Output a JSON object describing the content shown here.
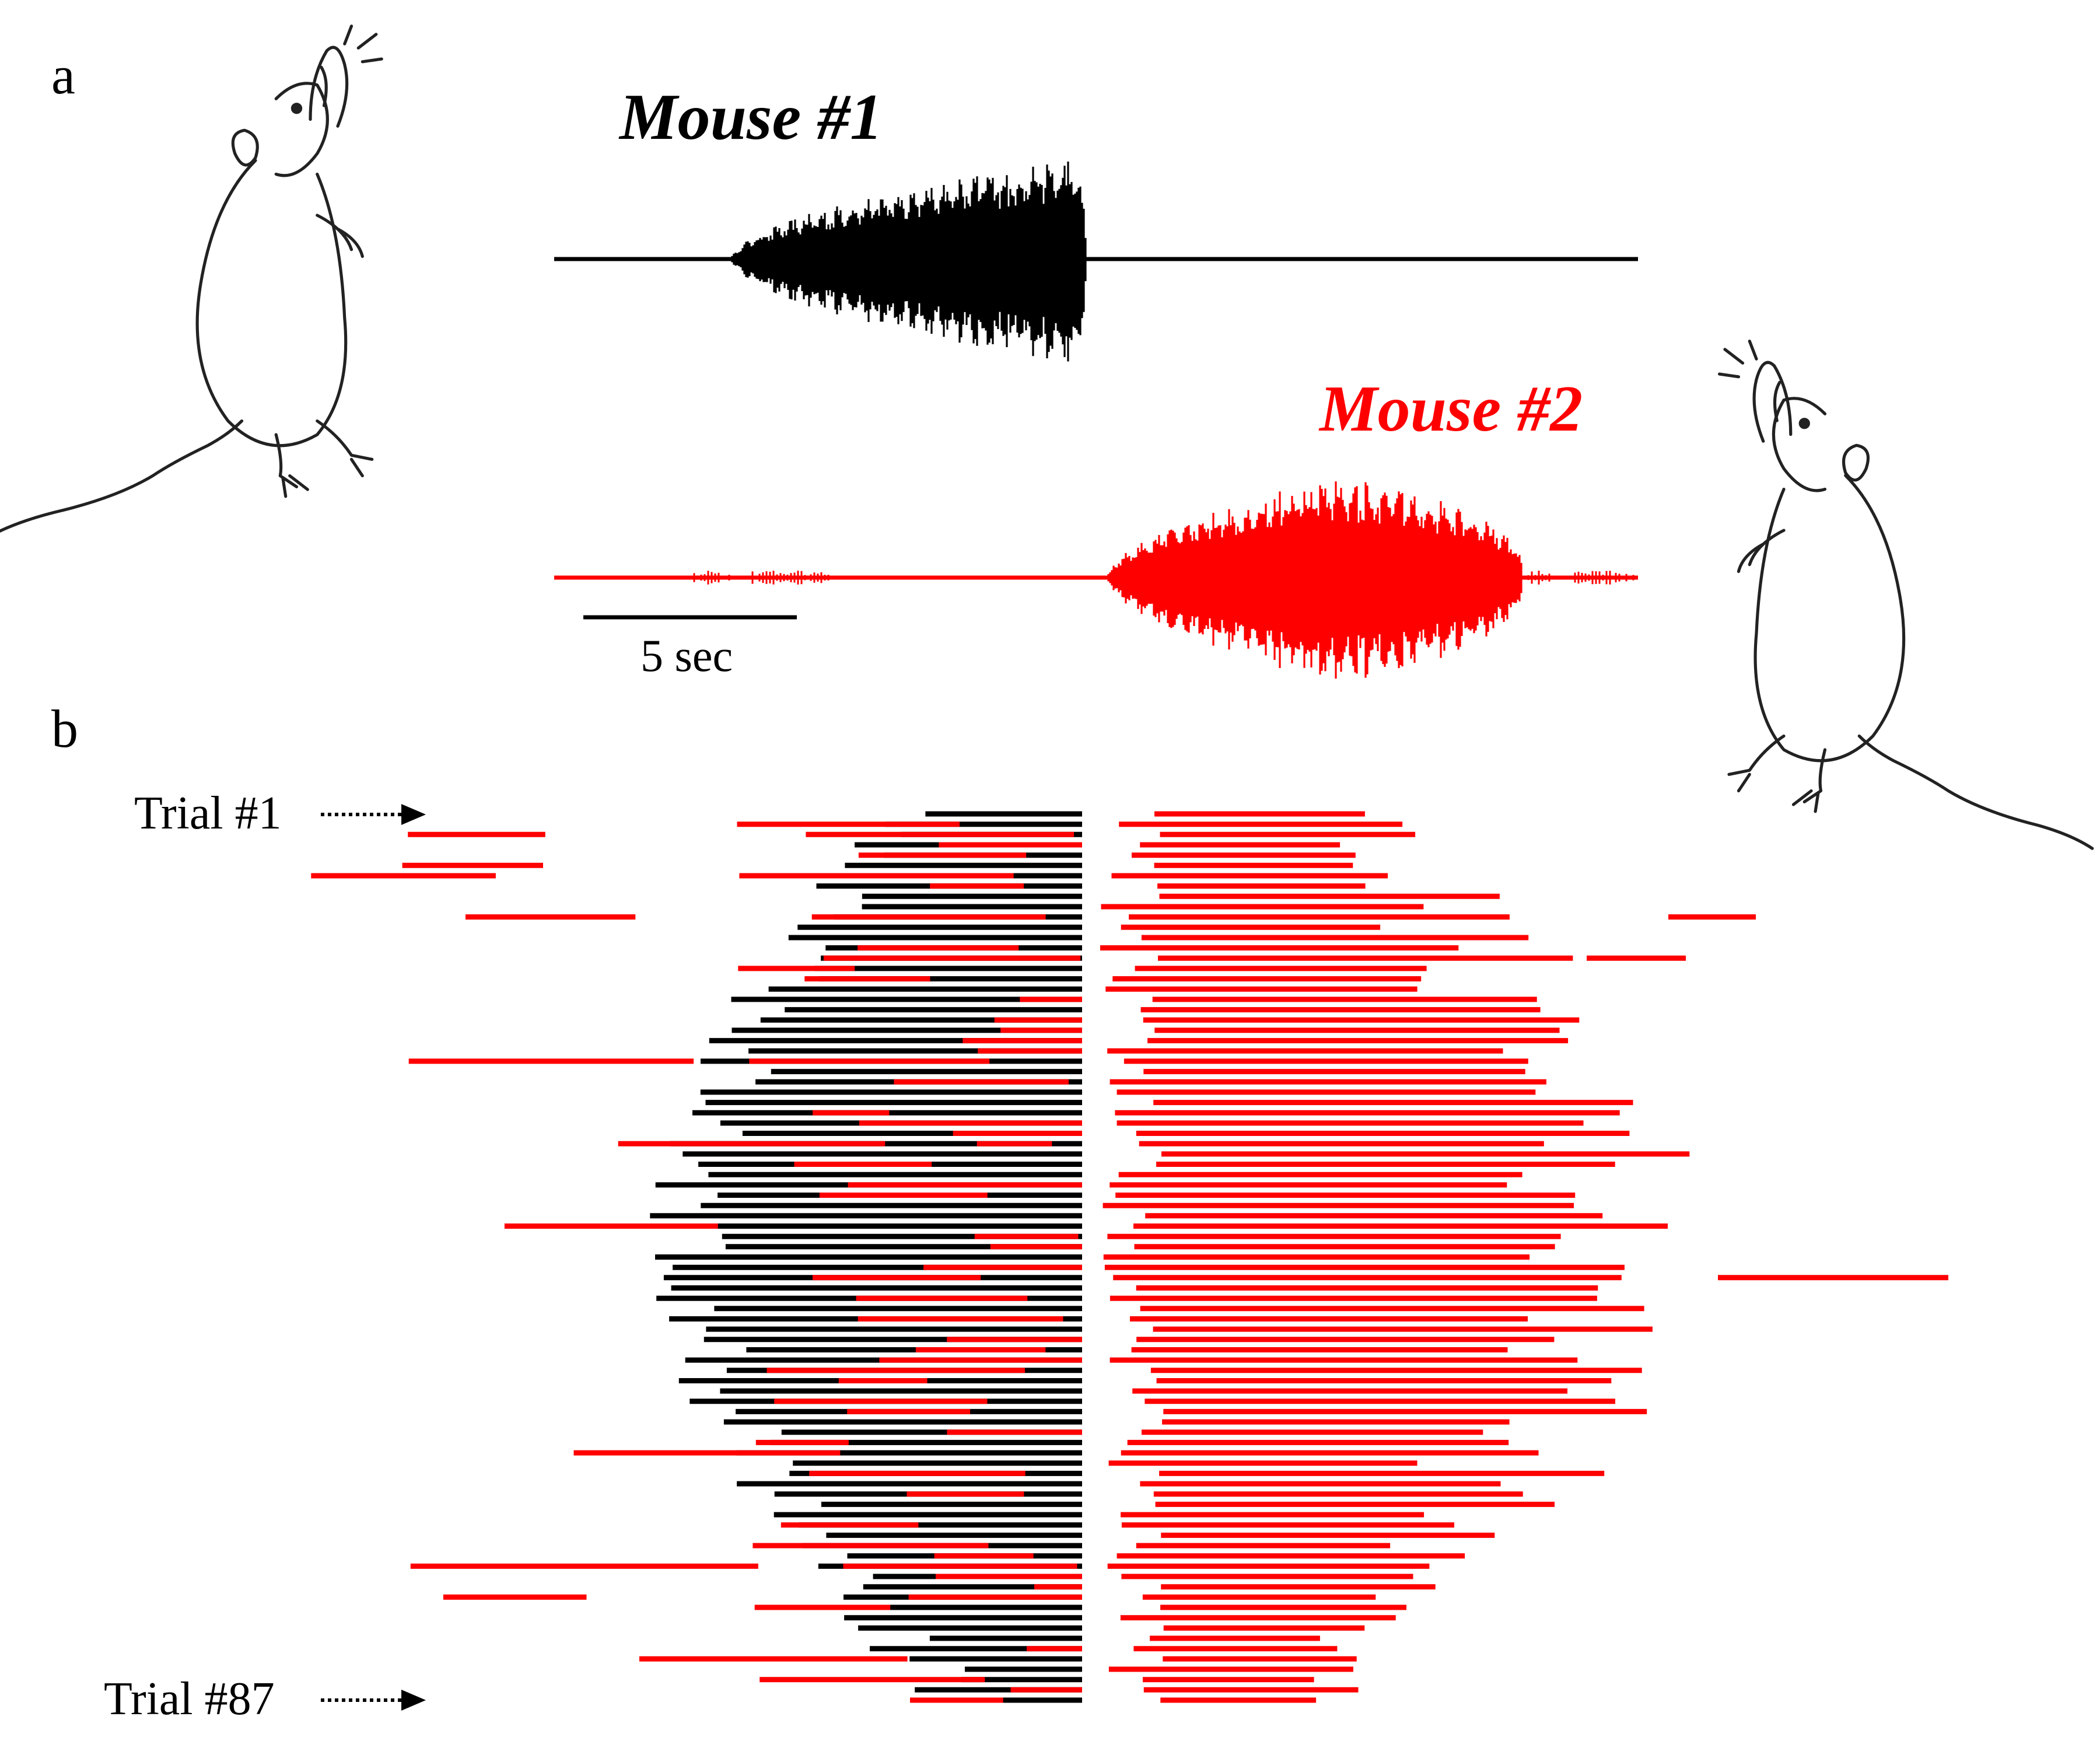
{
  "colors": {
    "mouse1": "#000000",
    "mouse2": "#ff0000",
    "background": "#ffffff"
  },
  "panel_a": {
    "letter": "a",
    "mouse1_label": "Mouse #1",
    "mouse2_label": "Mouse #2",
    "scale_bar_label": "5 sec",
    "scale_bar_seconds": 5,
    "illustrations": [
      "mouse-vocalizing-icon",
      "mouse-vocalizing-icon"
    ]
  },
  "panel_b": {
    "letter": "b",
    "first_trial_label": "Trial #1",
    "last_trial_label": "Trial #87",
    "trial_count": 87
  }
}
